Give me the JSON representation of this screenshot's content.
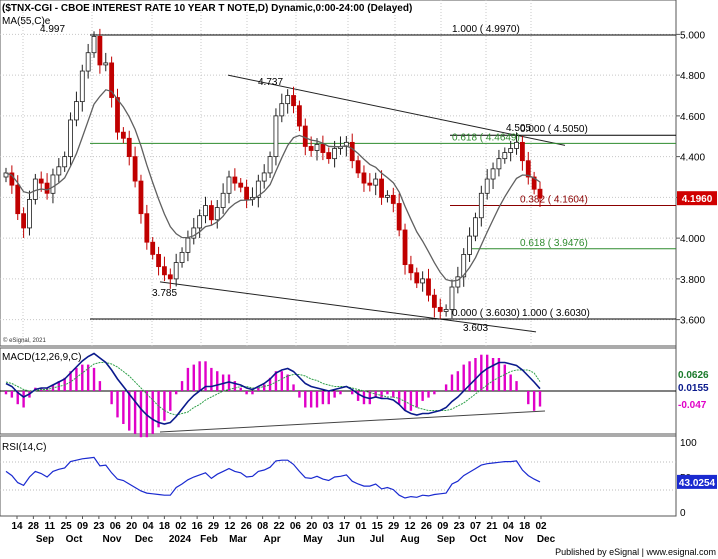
{
  "header": {
    "title": "($TNX-CGI - CBOE INTEREST RATE 10 YEAR T NOTE,D) Dynamic,0:00-24:00 (Delayed)",
    "ma_label": "MA(55,C)e"
  },
  "footer": {
    "copyright": "© eSignal, 2021",
    "publisher": "Published by eSignal | www.esignal.com"
  },
  "colors": {
    "price_up": "#1e1e1e",
    "price_down": "#c00000",
    "ma": "#606060",
    "fib_green": "#2e8b2e",
    "fib_red": "#8b0000",
    "macd": "#0a1a8c",
    "macd_signal": "#2fa04a",
    "histogram": "#e000c8",
    "rsi": "#1a2ad0",
    "last_price": "#d00000"
  },
  "chart_data": [
    {
      "type": "candlestick",
      "panel": "price",
      "title": "($TNX-CGI - CBOE INTEREST RATE 10 YEAR T NOTE,D) Dynamic,0:00-24:00 (Delayed)",
      "ylim": [
        3.5,
        5.1
      ],
      "y_ticks": [
        "3.600",
        "3.800",
        "4.000",
        "4.200",
        "4.400",
        "4.600",
        "4.800",
        "5.000"
      ],
      "last_price": "4.1960",
      "x_ticks": [
        "14",
        "28",
        "11",
        "25",
        "09",
        "23",
        "06",
        "20",
        "04",
        "18",
        "02",
        "16",
        "29",
        "12",
        "26",
        "08",
        "22",
        "06",
        "20",
        "03",
        "17",
        "01",
        "15",
        "29",
        "12",
        "26",
        "09",
        "23",
        "07",
        "21",
        "04",
        "18",
        "02"
      ],
      "months": [
        "Sep",
        "Oct",
        "Nov",
        "Dec",
        "2024",
        "Feb",
        "Mar",
        "Apr",
        "May",
        "Jun",
        "Jul",
        "Aug",
        "Sep",
        "Oct",
        "Nov",
        "Dec"
      ],
      "pivots": [
        {
          "date": "2023-10-19",
          "value": 4.997,
          "label": "4.997"
        },
        {
          "date": "2023-12-27",
          "value": 3.785,
          "label": "3.785"
        },
        {
          "date": "2024-04-25",
          "value": 4.737,
          "label": "4.737"
        },
        {
          "date": "2024-09-16",
          "value": 3.603,
          "label": "3.603"
        },
        {
          "date": "2024-11-15",
          "value": 4.505,
          "label": "4.505"
        }
      ],
      "fib_levels": [
        {
          "label": "1.000 ( 4.9970)",
          "value": 4.997
        },
        {
          "label": "0.000 ( 4.5050)",
          "value": 4.505
        },
        {
          "label": "0.618 ( 4.4649)",
          "value": 4.4649
        },
        {
          "label": "0.382 ( 4.1604)",
          "value": 4.1604
        },
        {
          "label": "0.618 ( 3.9476)",
          "value": 3.9476
        },
        {
          "label": "0.000 ( 3.6030)",
          "value": 3.603
        },
        {
          "label": "1.000 ( 3.6030)",
          "value": 3.603
        }
      ],
      "ma_period": 55,
      "closes": [
        4.32,
        4.26,
        4.12,
        4.05,
        4.19,
        4.29,
        4.27,
        4.22,
        4.31,
        4.35,
        4.4,
        4.58,
        4.67,
        4.82,
        4.91,
        4.99,
        4.85,
        4.86,
        4.69,
        4.52,
        4.49,
        4.4,
        4.28,
        4.12,
        3.98,
        3.92,
        3.86,
        3.82,
        3.8,
        3.88,
        3.93,
        4.0,
        4.05,
        4.11,
        4.16,
        4.09,
        4.15,
        4.22,
        4.3,
        4.27,
        4.25,
        4.19,
        4.2,
        4.28,
        4.32,
        4.4,
        4.6,
        4.66,
        4.7,
        4.65,
        4.55,
        4.45,
        4.43,
        4.46,
        4.42,
        4.39,
        4.44,
        4.45,
        4.47,
        4.38,
        4.32,
        4.27,
        4.26,
        4.29,
        4.2,
        4.21,
        4.17,
        4.04,
        3.87,
        3.83,
        3.78,
        3.8,
        3.72,
        3.66,
        3.64,
        3.65,
        3.76,
        3.81,
        3.92,
        4.01,
        4.1,
        4.22,
        4.29,
        4.34,
        4.39,
        4.42,
        4.44,
        4.47,
        4.38,
        4.3,
        4.24,
        4.196
      ]
    },
    {
      "type": "line",
      "panel": "macd",
      "title": "MACD(12,26,9,C)",
      "series": [
        {
          "name": "MACD",
          "values": [
            0.05,
            0.03,
            -0.01,
            -0.04,
            -0.02,
            0.01,
            0.02,
            0.02,
            0.04,
            0.06,
            0.08,
            0.12,
            0.16,
            0.2,
            0.23,
            0.25,
            0.22,
            0.19,
            0.14,
            0.08,
            0.03,
            -0.02,
            -0.07,
            -0.12,
            -0.16,
            -0.19,
            -0.21,
            -0.22,
            -0.21,
            -0.17,
            -0.12,
            -0.07,
            -0.03,
            0.0,
            0.03,
            0.03,
            0.04,
            0.05,
            0.06,
            0.05,
            0.04,
            0.02,
            0.01,
            0.03,
            0.05,
            0.08,
            0.12,
            0.14,
            0.15,
            0.13,
            0.09,
            0.05,
            0.03,
            0.02,
            0.01,
            0.0,
            0.01,
            0.02,
            0.03,
            0.01,
            -0.02,
            -0.04,
            -0.05,
            -0.04,
            -0.05,
            -0.05,
            -0.06,
            -0.09,
            -0.13,
            -0.15,
            -0.16,
            -0.15,
            -0.15,
            -0.14,
            -0.13,
            -0.11,
            -0.07,
            -0.04,
            0.0,
            0.04,
            0.08,
            0.12,
            0.15,
            0.17,
            0.19,
            0.19,
            0.18,
            0.17,
            0.14,
            0.1,
            0.06,
            0.0155
          ]
        },
        {
          "name": "Signal",
          "values": [
            0.06,
            0.05,
            0.03,
            0.01,
            0.0,
            0.0,
            0.01,
            0.01,
            0.02,
            0.03,
            0.04,
            0.06,
            0.09,
            0.12,
            0.15,
            0.18,
            0.19,
            0.19,
            0.18,
            0.16,
            0.13,
            0.1,
            0.06,
            0.02,
            -0.02,
            -0.06,
            -0.1,
            -0.13,
            -0.15,
            -0.16,
            -0.15,
            -0.14,
            -0.11,
            -0.09,
            -0.06,
            -0.04,
            -0.02,
            0.0,
            0.01,
            0.02,
            0.03,
            0.03,
            0.02,
            0.02,
            0.03,
            0.04,
            0.06,
            0.08,
            0.1,
            0.11,
            0.11,
            0.1,
            0.08,
            0.07,
            0.05,
            0.04,
            0.03,
            0.03,
            0.03,
            0.02,
            0.01,
            0.0,
            -0.01,
            -0.02,
            -0.03,
            -0.04,
            -0.04,
            -0.05,
            -0.07,
            -0.09,
            -0.11,
            -0.12,
            -0.13,
            -0.13,
            -0.13,
            -0.13,
            -0.12,
            -0.1,
            -0.08,
            -0.05,
            -0.02,
            0.01,
            0.04,
            0.07,
            0.09,
            0.11,
            0.13,
            0.14,
            0.14,
            0.14,
            0.12,
            0.0626
          ]
        }
      ],
      "last_labels": [
        "0.0626",
        "0.0155",
        "-0.047"
      ]
    },
    {
      "type": "line",
      "panel": "rsi",
      "title": "RSI(14,C)",
      "y_ticks": [
        "100",
        "50",
        "0"
      ],
      "series": [
        {
          "name": "RSI",
          "values": [
            58,
            52,
            42,
            38,
            50,
            58,
            55,
            50,
            58,
            61,
            63,
            72,
            74,
            76,
            77,
            78,
            66,
            67,
            56,
            47,
            45,
            40,
            35,
            30,
            27,
            26,
            25,
            24,
            24,
            35,
            40,
            46,
            50,
            53,
            56,
            48,
            54,
            58,
            62,
            58,
            56,
            50,
            51,
            58,
            60,
            64,
            73,
            74,
            74,
            68,
            58,
            49,
            48,
            51,
            47,
            45,
            50,
            51,
            53,
            44,
            40,
            37,
            37,
            40,
            33,
            35,
            32,
            24,
            20,
            22,
            21,
            24,
            23,
            25,
            26,
            27,
            40,
            44,
            52,
            57,
            62,
            67,
            69,
            70,
            71,
            72,
            72,
            73,
            60,
            52,
            47,
            43.0254
          ]
        }
      ],
      "last_label": "43.0254"
    }
  ]
}
